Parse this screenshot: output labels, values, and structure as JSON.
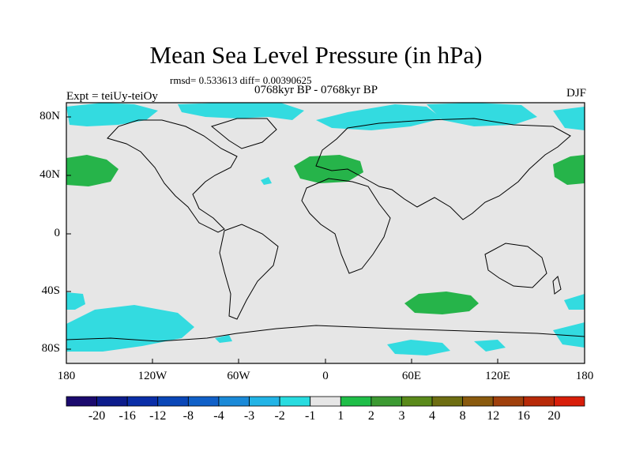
{
  "title": "Mean Sea Level Pressure (in hPa)",
  "stats_line": "rmsd= 0.533613 diff= 0.00390625",
  "period_line": "0768kyr BP - 0768kyr BP",
  "expt_label": "Expt = teiUy-teiOy",
  "season_label": "DJF",
  "y_ticks": [
    "80N",
    "40N",
    "0",
    "40S",
    "80S"
  ],
  "x_ticks": [
    "180",
    "120W",
    "60W",
    "0",
    "60E",
    "120E",
    "180"
  ],
  "colorbar": {
    "labels": [
      "-20",
      "-16",
      "-12",
      "-8",
      "-4",
      "-3",
      "-2",
      "-1",
      "1",
      "2",
      "3",
      "4",
      "8",
      "12",
      "16",
      "20"
    ],
    "colors": [
      "#1b0a6e",
      "#0d1c8c",
      "#0a2ea8",
      "#0a47b8",
      "#1060c8",
      "#1a8ad8",
      "#22b4e6",
      "#28dce0",
      "#e6e6e6",
      "#1fbe48",
      "#3c9a32",
      "#5a8a1a",
      "#6e6e12",
      "#8a5a0e",
      "#a0400c",
      "#b82a08",
      "#d81e0a"
    ]
  },
  "map_colors": {
    "background": "#e6e6e6",
    "negative_anomaly": "#33dbe0",
    "positive_anomaly": "#26b44a"
  }
}
